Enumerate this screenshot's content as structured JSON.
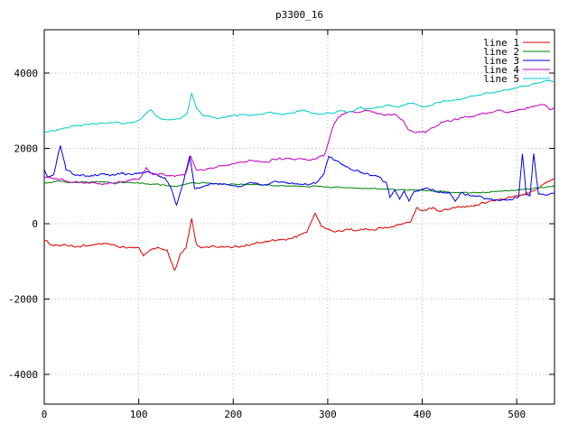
{
  "chart_data": {
    "type": "line",
    "title": "p3300_16",
    "xlabel": "",
    "ylabel": "",
    "xlim": [
      0,
      540
    ],
    "ylim": [
      -4790,
      5150
    ],
    "xticks": [
      0,
      100,
      200,
      300,
      400,
      500
    ],
    "yticks": [
      -4000,
      -2000,
      0,
      2000,
      4000
    ],
    "grid": true,
    "legend_position": "top-right",
    "series": [
      {
        "name": "line 1",
        "color": "#dd0000",
        "noise": 45,
        "anchors": [
          [
            0,
            -430
          ],
          [
            8,
            -560
          ],
          [
            20,
            -580
          ],
          [
            35,
            -620
          ],
          [
            50,
            -560
          ],
          [
            62,
            -520
          ],
          [
            75,
            -600
          ],
          [
            90,
            -640
          ],
          [
            100,
            -660
          ],
          [
            105,
            -870
          ],
          [
            112,
            -680
          ],
          [
            120,
            -630
          ],
          [
            130,
            -720
          ],
          [
            138,
            -1240
          ],
          [
            144,
            -820
          ],
          [
            150,
            -620
          ],
          [
            156,
            140
          ],
          [
            161,
            -560
          ],
          [
            170,
            -630
          ],
          [
            185,
            -600
          ],
          [
            200,
            -630
          ],
          [
            215,
            -560
          ],
          [
            230,
            -500
          ],
          [
            245,
            -460
          ],
          [
            258,
            -400
          ],
          [
            268,
            -340
          ],
          [
            278,
            -210
          ],
          [
            287,
            290
          ],
          [
            293,
            -60
          ],
          [
            300,
            -160
          ],
          [
            310,
            -210
          ],
          [
            320,
            -140
          ],
          [
            332,
            -190
          ],
          [
            345,
            -140
          ],
          [
            358,
            -110
          ],
          [
            368,
            -60
          ],
          [
            378,
            -30
          ],
          [
            388,
            60
          ],
          [
            394,
            440
          ],
          [
            400,
            300
          ],
          [
            406,
            390
          ],
          [
            412,
            430
          ],
          [
            418,
            300
          ],
          [
            425,
            370
          ],
          [
            435,
            420
          ],
          [
            445,
            460
          ],
          [
            455,
            510
          ],
          [
            465,
            560
          ],
          [
            478,
            620
          ],
          [
            490,
            690
          ],
          [
            500,
            740
          ],
          [
            510,
            800
          ],
          [
            520,
            890
          ],
          [
            530,
            1060
          ],
          [
            540,
            1180
          ]
        ]
      },
      {
        "name": "line 2",
        "color": "#008000",
        "noise": 22,
        "anchors": [
          [
            0,
            1090
          ],
          [
            15,
            1140
          ],
          [
            30,
            1100
          ],
          [
            45,
            1120
          ],
          [
            60,
            1110
          ],
          [
            75,
            1080
          ],
          [
            90,
            1100
          ],
          [
            105,
            1070
          ],
          [
            120,
            1040
          ],
          [
            140,
            990
          ],
          [
            155,
            1090
          ],
          [
            170,
            1070
          ],
          [
            185,
            1060
          ],
          [
            200,
            1050
          ],
          [
            220,
            1030
          ],
          [
            240,
            1020
          ],
          [
            260,
            1000
          ],
          [
            280,
            995
          ],
          [
            300,
            975
          ],
          [
            320,
            950
          ],
          [
            340,
            940
          ],
          [
            360,
            925
          ],
          [
            380,
            900
          ],
          [
            400,
            880
          ],
          [
            420,
            855
          ],
          [
            440,
            835
          ],
          [
            460,
            825
          ],
          [
            480,
            850
          ],
          [
            500,
            895
          ],
          [
            520,
            945
          ],
          [
            540,
            995
          ]
        ]
      },
      {
        "name": "line 3",
        "color": "#0000ee",
        "noise": 45,
        "anchors": [
          [
            0,
            1420
          ],
          [
            4,
            1210
          ],
          [
            10,
            1300
          ],
          [
            17,
            2080
          ],
          [
            23,
            1420
          ],
          [
            32,
            1310
          ],
          [
            45,
            1260
          ],
          [
            58,
            1300
          ],
          [
            70,
            1260
          ],
          [
            82,
            1340
          ],
          [
            95,
            1290
          ],
          [
            108,
            1380
          ],
          [
            118,
            1300
          ],
          [
            128,
            1210
          ],
          [
            135,
            900
          ],
          [
            140,
            520
          ],
          [
            147,
            1080
          ],
          [
            154,
            1780
          ],
          [
            159,
            920
          ],
          [
            168,
            1000
          ],
          [
            180,
            1090
          ],
          [
            192,
            1040
          ],
          [
            205,
            1010
          ],
          [
            218,
            1090
          ],
          [
            230,
            1050
          ],
          [
            242,
            1090
          ],
          [
            255,
            1070
          ],
          [
            268,
            1050
          ],
          [
            280,
            1055
          ],
          [
            290,
            1110
          ],
          [
            296,
            1320
          ],
          [
            301,
            1790
          ],
          [
            307,
            1700
          ],
          [
            314,
            1590
          ],
          [
            324,
            1480
          ],
          [
            334,
            1380
          ],
          [
            344,
            1300
          ],
          [
            354,
            1240
          ],
          [
            362,
            1090
          ],
          [
            366,
            720
          ],
          [
            371,
            920
          ],
          [
            376,
            660
          ],
          [
            381,
            900
          ],
          [
            386,
            610
          ],
          [
            391,
            860
          ],
          [
            400,
            950
          ],
          [
            410,
            900
          ],
          [
            420,
            850
          ],
          [
            430,
            790
          ],
          [
            435,
            610
          ],
          [
            441,
            800
          ],
          [
            452,
            750
          ],
          [
            463,
            700
          ],
          [
            474,
            650
          ],
          [
            484,
            610
          ],
          [
            494,
            660
          ],
          [
            502,
            700
          ],
          [
            506,
            1840
          ],
          [
            510,
            790
          ],
          [
            514,
            750
          ],
          [
            518,
            1890
          ],
          [
            523,
            790
          ],
          [
            531,
            750
          ],
          [
            540,
            800
          ]
        ]
      },
      {
        "name": "line 4",
        "color": "#bf00bf",
        "noise": 40,
        "anchors": [
          [
            0,
            1260
          ],
          [
            12,
            1190
          ],
          [
            25,
            1130
          ],
          [
            38,
            1110
          ],
          [
            50,
            1090
          ],
          [
            62,
            1060
          ],
          [
            75,
            1100
          ],
          [
            88,
            1140
          ],
          [
            100,
            1190
          ],
          [
            108,
            1480
          ],
          [
            114,
            1300
          ],
          [
            122,
            1340
          ],
          [
            132,
            1290
          ],
          [
            142,
            1250
          ],
          [
            150,
            1310
          ],
          [
            155,
            1790
          ],
          [
            161,
            1400
          ],
          [
            172,
            1450
          ],
          [
            184,
            1510
          ],
          [
            196,
            1560
          ],
          [
            208,
            1620
          ],
          [
            220,
            1690
          ],
          [
            232,
            1650
          ],
          [
            244,
            1700
          ],
          [
            256,
            1740
          ],
          [
            268,
            1690
          ],
          [
            280,
            1700
          ],
          [
            290,
            1760
          ],
          [
            296,
            1820
          ],
          [
            301,
            2180
          ],
          [
            306,
            2620
          ],
          [
            311,
            2860
          ],
          [
            317,
            2920
          ],
          [
            323,
            3000
          ],
          [
            330,
            2960
          ],
          [
            340,
            3000
          ],
          [
            350,
            2930
          ],
          [
            360,
            2870
          ],
          [
            370,
            2910
          ],
          [
            380,
            2710
          ],
          [
            386,
            2500
          ],
          [
            392,
            2410
          ],
          [
            398,
            2450
          ],
          [
            404,
            2420
          ],
          [
            410,
            2560
          ],
          [
            420,
            2680
          ],
          [
            430,
            2740
          ],
          [
            440,
            2800
          ],
          [
            450,
            2850
          ],
          [
            460,
            2900
          ],
          [
            470,
            2950
          ],
          [
            480,
            3000
          ],
          [
            490,
            2940
          ],
          [
            500,
            3000
          ],
          [
            510,
            3050
          ],
          [
            520,
            3110
          ],
          [
            526,
            3200
          ],
          [
            531,
            3140
          ],
          [
            536,
            3040
          ],
          [
            540,
            3100
          ]
        ]
      },
      {
        "name": "line 5",
        "color": "#00cccc",
        "noise": 35,
        "anchors": [
          [
            0,
            2440
          ],
          [
            12,
            2500
          ],
          [
            25,
            2560
          ],
          [
            38,
            2600
          ],
          [
            50,
            2640
          ],
          [
            62,
            2660
          ],
          [
            75,
            2700
          ],
          [
            85,
            2650
          ],
          [
            95,
            2700
          ],
          [
            103,
            2780
          ],
          [
            108,
            2950
          ],
          [
            113,
            3010
          ],
          [
            118,
            2860
          ],
          [
            126,
            2790
          ],
          [
            135,
            2760
          ],
          [
            144,
            2810
          ],
          [
            151,
            2920
          ],
          [
            156,
            3480
          ],
          [
            161,
            3090
          ],
          [
            167,
            2900
          ],
          [
            175,
            2850
          ],
          [
            186,
            2810
          ],
          [
            197,
            2860
          ],
          [
            208,
            2900
          ],
          [
            219,
            2860
          ],
          [
            230,
            2910
          ],
          [
            241,
            2950
          ],
          [
            252,
            2900
          ],
          [
            263,
            2950
          ],
          [
            274,
            3000
          ],
          [
            285,
            2950
          ],
          [
            295,
            2910
          ],
          [
            305,
            2960
          ],
          [
            315,
            3010
          ],
          [
            325,
            2970
          ],
          [
            335,
            3090
          ],
          [
            345,
            3040
          ],
          [
            355,
            3100
          ],
          [
            365,
            3150
          ],
          [
            375,
            3090
          ],
          [
            385,
            3190
          ],
          [
            395,
            3140
          ],
          [
            405,
            3110
          ],
          [
            415,
            3190
          ],
          [
            425,
            3250
          ],
          [
            435,
            3300
          ],
          [
            445,
            3340
          ],
          [
            455,
            3390
          ],
          [
            465,
            3440
          ],
          [
            475,
            3490
          ],
          [
            485,
            3540
          ],
          [
            495,
            3590
          ],
          [
            505,
            3650
          ],
          [
            515,
            3700
          ],
          [
            525,
            3760
          ],
          [
            533,
            3820
          ],
          [
            540,
            3760
          ]
        ]
      }
    ]
  },
  "colors": {
    "grid": "#b4b4b4",
    "border": "#000000",
    "text": "#000000"
  }
}
